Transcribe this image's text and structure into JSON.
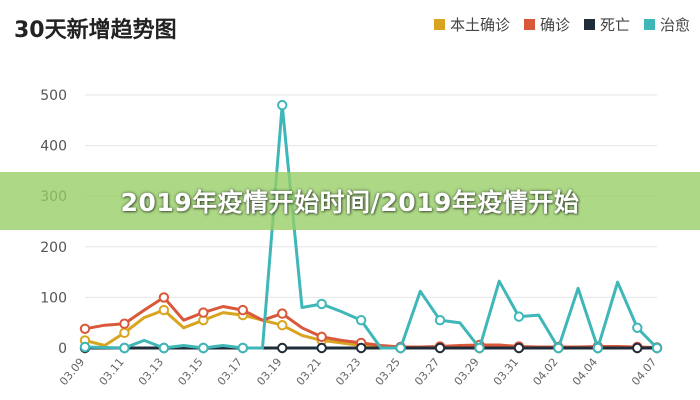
{
  "title": "30天新增趋势图",
  "banner": "2019年疫情开始时间/2019年疫情开始",
  "chart_data": {
    "type": "line",
    "title": "30天新增趋势图",
    "x": [
      "03.09",
      "03.10",
      "03.11",
      "03.12",
      "03.13",
      "03.14",
      "03.15",
      "03.16",
      "03.17",
      "03.18",
      "03.19",
      "03.20",
      "03.21",
      "03.22",
      "03.23",
      "03.24",
      "03.25",
      "03.26",
      "03.27",
      "03.28",
      "03.29",
      "03.30",
      "03.31",
      "04.01",
      "04.02",
      "04.03",
      "04.04",
      "04.05",
      "04.06",
      "04.07"
    ],
    "xticks": [
      "03.09",
      "03.11",
      "03.13",
      "03.15",
      "03.17",
      "03.19",
      "03.21",
      "03.23",
      "03.25",
      "03.27",
      "03.29",
      "03.31",
      "04.02",
      "04.04",
      "04.07"
    ],
    "yticks": [
      0,
      100,
      200,
      300,
      400,
      500
    ],
    "ylim": [
      0,
      500
    ],
    "grid": true,
    "legend_position": "top-right",
    "series": [
      {
        "name": "本土确诊",
        "color": "#d9a520",
        "values": [
          15,
          5,
          30,
          60,
          75,
          40,
          55,
          70,
          65,
          55,
          45,
          25,
          15,
          10,
          5,
          0,
          0,
          0,
          0,
          0,
          0,
          0,
          0,
          0,
          0,
          0,
          0,
          0,
          0,
          0
        ]
      },
      {
        "name": "确诊",
        "color": "#d9583a",
        "values": [
          38,
          45,
          48,
          75,
          100,
          55,
          70,
          82,
          75,
          55,
          68,
          40,
          22,
          15,
          10,
          5,
          2,
          2,
          3,
          5,
          6,
          6,
          3,
          2,
          2,
          2,
          3,
          3,
          2,
          1
        ]
      },
      {
        "name": "死亡",
        "color": "#1f2d3a",
        "values": [
          0,
          0,
          0,
          0,
          0,
          0,
          0,
          0,
          0,
          0,
          0,
          0,
          0,
          0,
          0,
          0,
          0,
          0,
          0,
          0,
          0,
          0,
          0,
          0,
          0,
          0,
          0,
          0,
          0,
          0
        ]
      },
      {
        "name": "治愈",
        "color": "#3fb7b8",
        "values": [
          2,
          1,
          0,
          15,
          0,
          5,
          0,
          5,
          0,
          0,
          480,
          80,
          87,
          72,
          55,
          0,
          0,
          112,
          55,
          50,
          0,
          132,
          62,
          65,
          0,
          118,
          0,
          130,
          40,
          0
        ]
      }
    ]
  }
}
